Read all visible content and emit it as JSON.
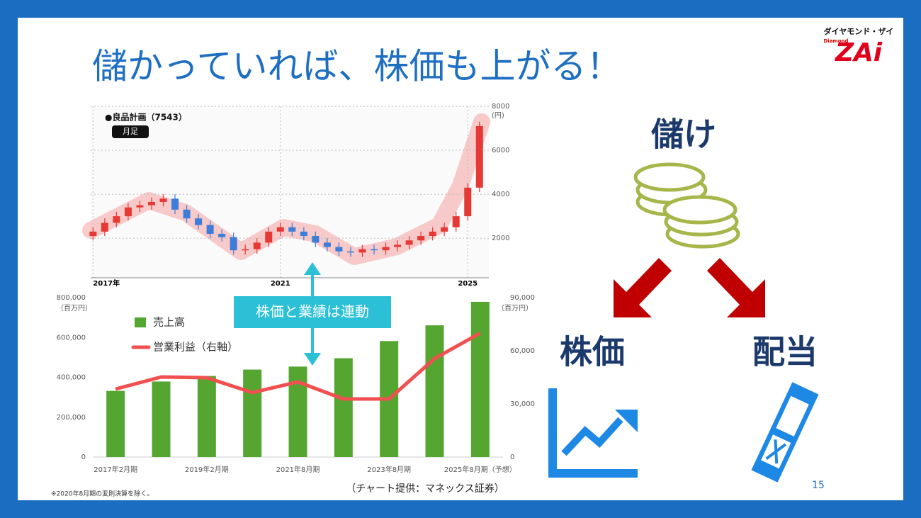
{
  "slide": {
    "title": "儲かっていれば、株価も上がる！",
    "logo_top": "ダイヤモンド・ザイ",
    "logo_small": "Diamond",
    "logo_main": "ZAi",
    "annotation": "株価と業績は連動",
    "profit": "儲け",
    "stock_price": "株価",
    "dividend": "配当",
    "page_number": "15",
    "footnote": "※2020年8月期の変則決算を除く。",
    "credit": "（チャート提供：マネックス証券）"
  },
  "chart_data": [
    {
      "type": "candlestick",
      "title": "●良品計画（7543）",
      "subtitle": "月足",
      "y_unit": "(円)",
      "x": [
        2017,
        2017.25,
        2017.5,
        2017.75,
        2018,
        2018.25,
        2018.5,
        2018.75,
        2019,
        2019.25,
        2019.5,
        2019.75,
        2020,
        2020.25,
        2020.5,
        2020.75,
        2021,
        2021.25,
        2021.5,
        2021.75,
        2022,
        2022.25,
        2022.5,
        2022.75,
        2023,
        2023.25,
        2023.5,
        2023.75,
        2024,
        2024.25,
        2024.5,
        2024.75,
        2025,
        2025.25
      ],
      "open": [
        2100,
        2300,
        2700,
        3000,
        3400,
        3500,
        3650,
        3800,
        3300,
        2900,
        2600,
        2200,
        2050,
        1450,
        1500,
        1800,
        2300,
        2500,
        2300,
        2100,
        1800,
        1600,
        1400,
        1350,
        1500,
        1450,
        1600,
        1700,
        1900,
        2100,
        2300,
        2500,
        3000,
        4300
      ],
      "high": [
        2500,
        2900,
        3200,
        3600,
        3700,
        3850,
        4000,
        4000,
        3500,
        3100,
        2800,
        2400,
        2250,
        1700,
        2000,
        2500,
        2700,
        2700,
        2500,
        2300,
        2000,
        1800,
        1600,
        1700,
        1700,
        1800,
        1900,
        2100,
        2300,
        2500,
        2700,
        3200,
        4500,
        7300
      ],
      "low": [
        1900,
        2100,
        2500,
        2800,
        3200,
        3300,
        3450,
        3100,
        2700,
        2400,
        2000,
        1850,
        1250,
        1250,
        1300,
        1600,
        2100,
        2100,
        1900,
        1600,
        1400,
        1200,
        1150,
        1150,
        1250,
        1250,
        1400,
        1500,
        1700,
        1900,
        2100,
        2300,
        2800,
        4100
      ],
      "close": [
        2300,
        2700,
        3000,
        3400,
        3500,
        3650,
        3800,
        3300,
        2900,
        2600,
        2200,
        2050,
        1450,
        1500,
        1800,
        2300,
        2500,
        2300,
        2100,
        1800,
        1600,
        1400,
        1350,
        1500,
        1450,
        1600,
        1700,
        1900,
        2100,
        2300,
        2500,
        3000,
        4300,
        7100
      ],
      "up_color": "#e53935",
      "down_color": "#3b7dd8",
      "xlim": [
        2016.95,
        2025.45
      ],
      "xticks": [
        {
          "value": 2017,
          "label": "2017年"
        },
        2021,
        2025
      ],
      "ylim": [
        200,
        8000
      ],
      "yticks": [
        2000,
        4000,
        6000,
        8000
      ],
      "grid": true
    },
    {
      "type": "bar_line",
      "y_unit": "（百万円）",
      "y2_unit": "（百万円）",
      "categories": [
        "2017年2月期",
        null,
        "2019年2月期",
        null,
        "2021年8月期",
        null,
        "2023年8月期",
        null,
        "2025年8月期（予想）"
      ],
      "series": [
        {
          "name": "売上高",
          "type": "bar",
          "color": "#55a630",
          "values": [
            332000,
            379000,
            407000,
            439000,
            454000,
            496000,
            582000,
            661000,
            779000
          ]
        },
        {
          "name": "営業利益（右軸）",
          "type": "line",
          "axis": "y2",
          "color": "#f05050",
          "values": [
            38400,
            45200,
            44800,
            36400,
            42400,
            32800,
            32800,
            55600,
            70000
          ]
        }
      ],
      "ylim": [
        0,
        800000
      ],
      "yticks": [
        0,
        {
          "value": 200000,
          "label": "200,000"
        },
        {
          "value": 400000,
          "label": "400,000"
        },
        {
          "value": 600000,
          "label": "600,000"
        },
        {
          "value": 800000,
          "label": "800,000"
        }
      ],
      "y2lim": [
        0,
        90000
      ],
      "y2ticks": [
        0,
        {
          "value": 30000,
          "label": "30,000"
        },
        {
          "value": 60000,
          "label": "60,000"
        },
        {
          "value": 90000,
          "label": "90,000"
        }
      ]
    }
  ]
}
